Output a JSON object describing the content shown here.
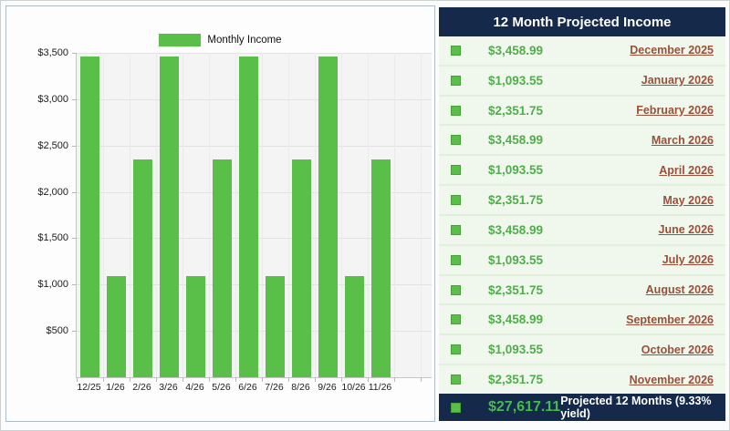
{
  "panel": {
    "title": "12 Month Projected Income",
    "rows": [
      {
        "amount": "$3,458.99",
        "month": "December 2025"
      },
      {
        "amount": "$1,093.55",
        "month": "January 2026"
      },
      {
        "amount": "$2,351.75",
        "month": "February 2026"
      },
      {
        "amount": "$3,458.99",
        "month": "March 2026"
      },
      {
        "amount": "$1,093.55",
        "month": "April 2026"
      },
      {
        "amount": "$2,351.75",
        "month": "May 2026"
      },
      {
        "amount": "$3,458.99",
        "month": "June 2026"
      },
      {
        "amount": "$1,093.55",
        "month": "July 2026"
      },
      {
        "amount": "$2,351.75",
        "month": "August 2026"
      },
      {
        "amount": "$3,458.99",
        "month": "September 2026"
      },
      {
        "amount": "$1,093.55",
        "month": "October 2026"
      },
      {
        "amount": "$2,351.75",
        "month": "November 2026"
      }
    ],
    "footer": {
      "total": "$27,617.11",
      "label": "Projected 12 Months (9.33% yield)"
    }
  },
  "chart_data": {
    "type": "bar",
    "title": "",
    "xlabel": "",
    "ylabel": "",
    "legend": "Monthly Income",
    "legend_position": "top",
    "grid": true,
    "ylim": [
      0,
      3500
    ],
    "yticks": [
      {
        "label": "$500",
        "value": 500
      },
      {
        "label": "$1,000",
        "value": 1000
      },
      {
        "label": "$1,500",
        "value": 1500
      },
      {
        "label": "$2,000",
        "value": 2000
      },
      {
        "label": "$2,500",
        "value": 2500
      },
      {
        "label": "$3,000",
        "value": 3000
      },
      {
        "label": "$3,500",
        "value": 3500
      }
    ],
    "categories": [
      "12/25",
      "1/26",
      "2/26",
      "3/26",
      "4/26",
      "5/26",
      "6/26",
      "7/26",
      "8/26",
      "9/26",
      "10/26",
      "11/26"
    ],
    "values": [
      3458.99,
      1093.55,
      2351.75,
      3458.99,
      1093.55,
      2351.75,
      3458.99,
      1093.55,
      2351.75,
      3458.99,
      1093.55,
      2351.75
    ]
  },
  "colors": {
    "accent_green": "#5abf48",
    "amount_green": "#4fae49",
    "total_green": "#43bb4e",
    "navy": "#15294b",
    "link_brown": "#9a5038",
    "row_bg": "#f0f8ee",
    "plot_bg": "#f4f4f4"
  }
}
